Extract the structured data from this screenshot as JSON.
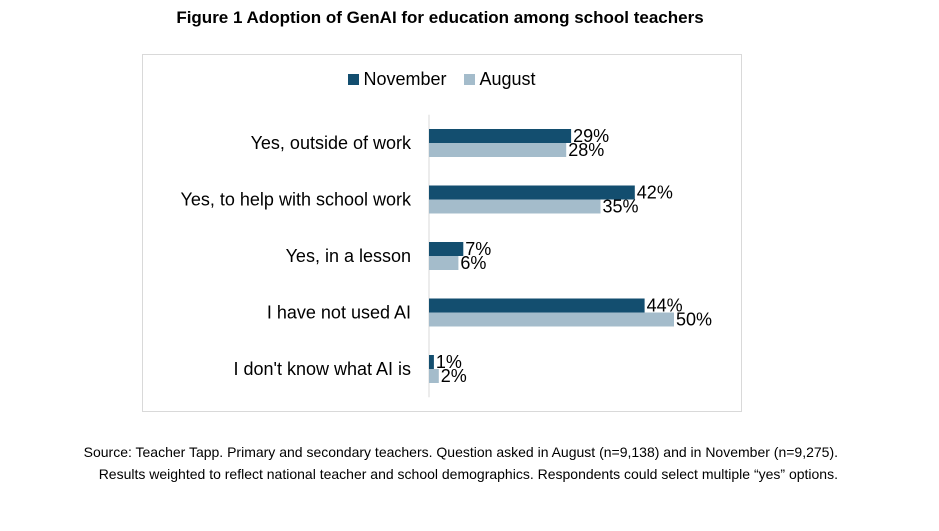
{
  "title": "Figure 1 Adoption of GenAI for education among school teachers",
  "chart_data": {
    "type": "bar",
    "orientation": "horizontal",
    "categories": [
      "Yes, outside of work",
      "Yes, to help with school work",
      "Yes, in a lesson",
      "I have not used AI",
      "I don't know what AI is"
    ],
    "series": [
      {
        "name": "November",
        "color": "#134e6f",
        "values": [
          29,
          42,
          7,
          44,
          1
        ]
      },
      {
        "name": "August",
        "color": "#a4bccb",
        "values": [
          28,
          35,
          6,
          50,
          2
        ]
      }
    ],
    "value_suffix": "%",
    "xlim": [
      0,
      50
    ],
    "grid": false,
    "legend_position": "top"
  },
  "source": "Source: Teacher Tapp. Primary and secondary teachers. Question asked in August (n=9,138) and in November (n=9,275). Results weighted to reflect national teacher and school demographics. Respondents could select multiple “yes” options."
}
